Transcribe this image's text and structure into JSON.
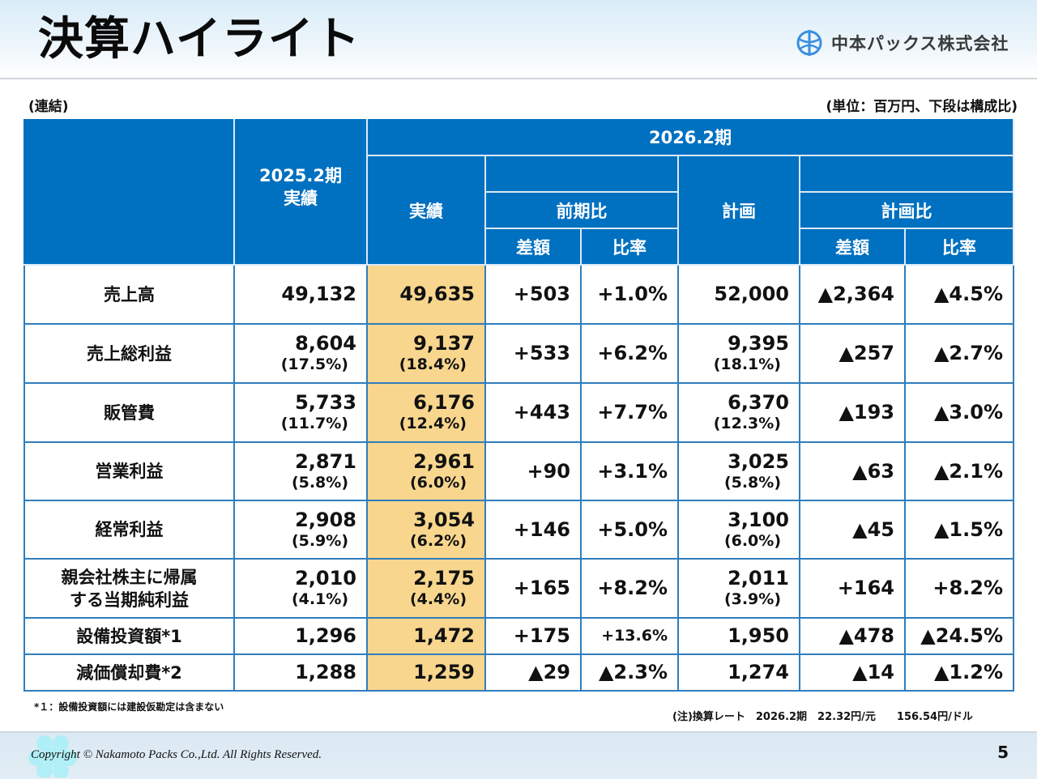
{
  "header": {
    "title": "決算ハイライト",
    "company_name": "中本パックス株式会社",
    "logo_icon": "company-logo-icon"
  },
  "labels": {
    "scope": "(連結)",
    "unit": "(単位：百万円、下段は構成比)"
  },
  "table": {
    "headers": {
      "prev_year": "2025.2期\n実績",
      "prev_year_line1": "2025.2期",
      "prev_year_line2": "実績",
      "current_year": "2026.2期",
      "actual": "実績",
      "yoy_group": "前期比",
      "plan": "計画",
      "plan_group": "計画比",
      "diff": "差額",
      "ratio": "比率"
    },
    "rows": [
      {
        "name_lines": [
          "売上高"
        ],
        "prev": "49,132",
        "prev_pct": "",
        "actual": "49,635",
        "actual_pct": "",
        "yoy_diff": "+503",
        "yoy_ratio": "+1.0%",
        "plan": "52,000",
        "plan_pct": "",
        "plan_diff": "▲2,364",
        "plan_ratio": "▲4.5%"
      },
      {
        "name_lines": [
          "売上総利益"
        ],
        "prev": "8,604",
        "prev_pct": "(17.5%)",
        "actual": "9,137",
        "actual_pct": "(18.4%)",
        "yoy_diff": "+533",
        "yoy_ratio": "+6.2%",
        "plan": "9,395",
        "plan_pct": "(18.1%)",
        "plan_diff": "▲257",
        "plan_ratio": "▲2.7%"
      },
      {
        "name_lines": [
          "販管費"
        ],
        "prev": "5,733",
        "prev_pct": "(11.7%)",
        "actual": "6,176",
        "actual_pct": "(12.4%)",
        "yoy_diff": "+443",
        "yoy_ratio": "+7.7%",
        "plan": "6,370",
        "plan_pct": "(12.3%)",
        "plan_diff": "▲193",
        "plan_ratio": "▲3.0%"
      },
      {
        "name_lines": [
          "営業利益"
        ],
        "prev": "2,871",
        "prev_pct": "(5.8%)",
        "actual": "2,961",
        "actual_pct": "(6.0%)",
        "yoy_diff": "+90",
        "yoy_ratio": "+3.1%",
        "plan": "3,025",
        "plan_pct": "(5.8%)",
        "plan_diff": "▲63",
        "plan_ratio": "▲2.1%"
      },
      {
        "name_lines": [
          "経常利益"
        ],
        "prev": "2,908",
        "prev_pct": "(5.9%)",
        "actual": "3,054",
        "actual_pct": "(6.2%)",
        "yoy_diff": "+146",
        "yoy_ratio": "+5.0%",
        "plan": "3,100",
        "plan_pct": "(6.0%)",
        "plan_diff": "▲45",
        "plan_ratio": "▲1.5%"
      },
      {
        "name_lines": [
          "親会社株主に帰属",
          "する当期純利益"
        ],
        "prev": "2,010",
        "prev_pct": "(4.1%)",
        "actual": "2,175",
        "actual_pct": "(4.4%)",
        "yoy_diff": "+165",
        "yoy_ratio": "+8.2%",
        "plan": "2,011",
        "plan_pct": "(3.9%)",
        "plan_diff": "+164",
        "plan_ratio": "+8.2%"
      },
      {
        "name_lines": [
          "設備投資額*1"
        ],
        "prev": "1,296",
        "prev_pct": "",
        "actual": "1,472",
        "actual_pct": "",
        "yoy_diff": "+175",
        "yoy_ratio": "+13.6%",
        "plan": "1,950",
        "plan_pct": "",
        "plan_diff": "▲478",
        "plan_ratio": "▲24.5%"
      },
      {
        "name_lines": [
          "減価償却費*2"
        ],
        "prev": "1,288",
        "prev_pct": "",
        "actual": "1,259",
        "actual_pct": "",
        "yoy_diff": "▲29",
        "yoy_ratio": "▲2.3%",
        "plan": "1,274",
        "plan_pct": "",
        "plan_diff": "▲14",
        "plan_ratio": "▲1.2%"
      }
    ]
  },
  "notes": {
    "footnote1": "*１：設備投資額には建設仮勘定は含まない",
    "exchange_rate": "(注)換算レート　2026.2期　22.32円/元　　156.54円/ドル"
  },
  "footer": {
    "copyright": "Copyright © Nakamoto Packs Co.,Ltd. All Rights Reserved.",
    "page_number": "5"
  },
  "colors": {
    "header_blue": "#0070c0",
    "highlight_yellow": "#f8d68e",
    "grid_blue": "#2f7dbd",
    "logo_blue": "#3a8fe0"
  }
}
